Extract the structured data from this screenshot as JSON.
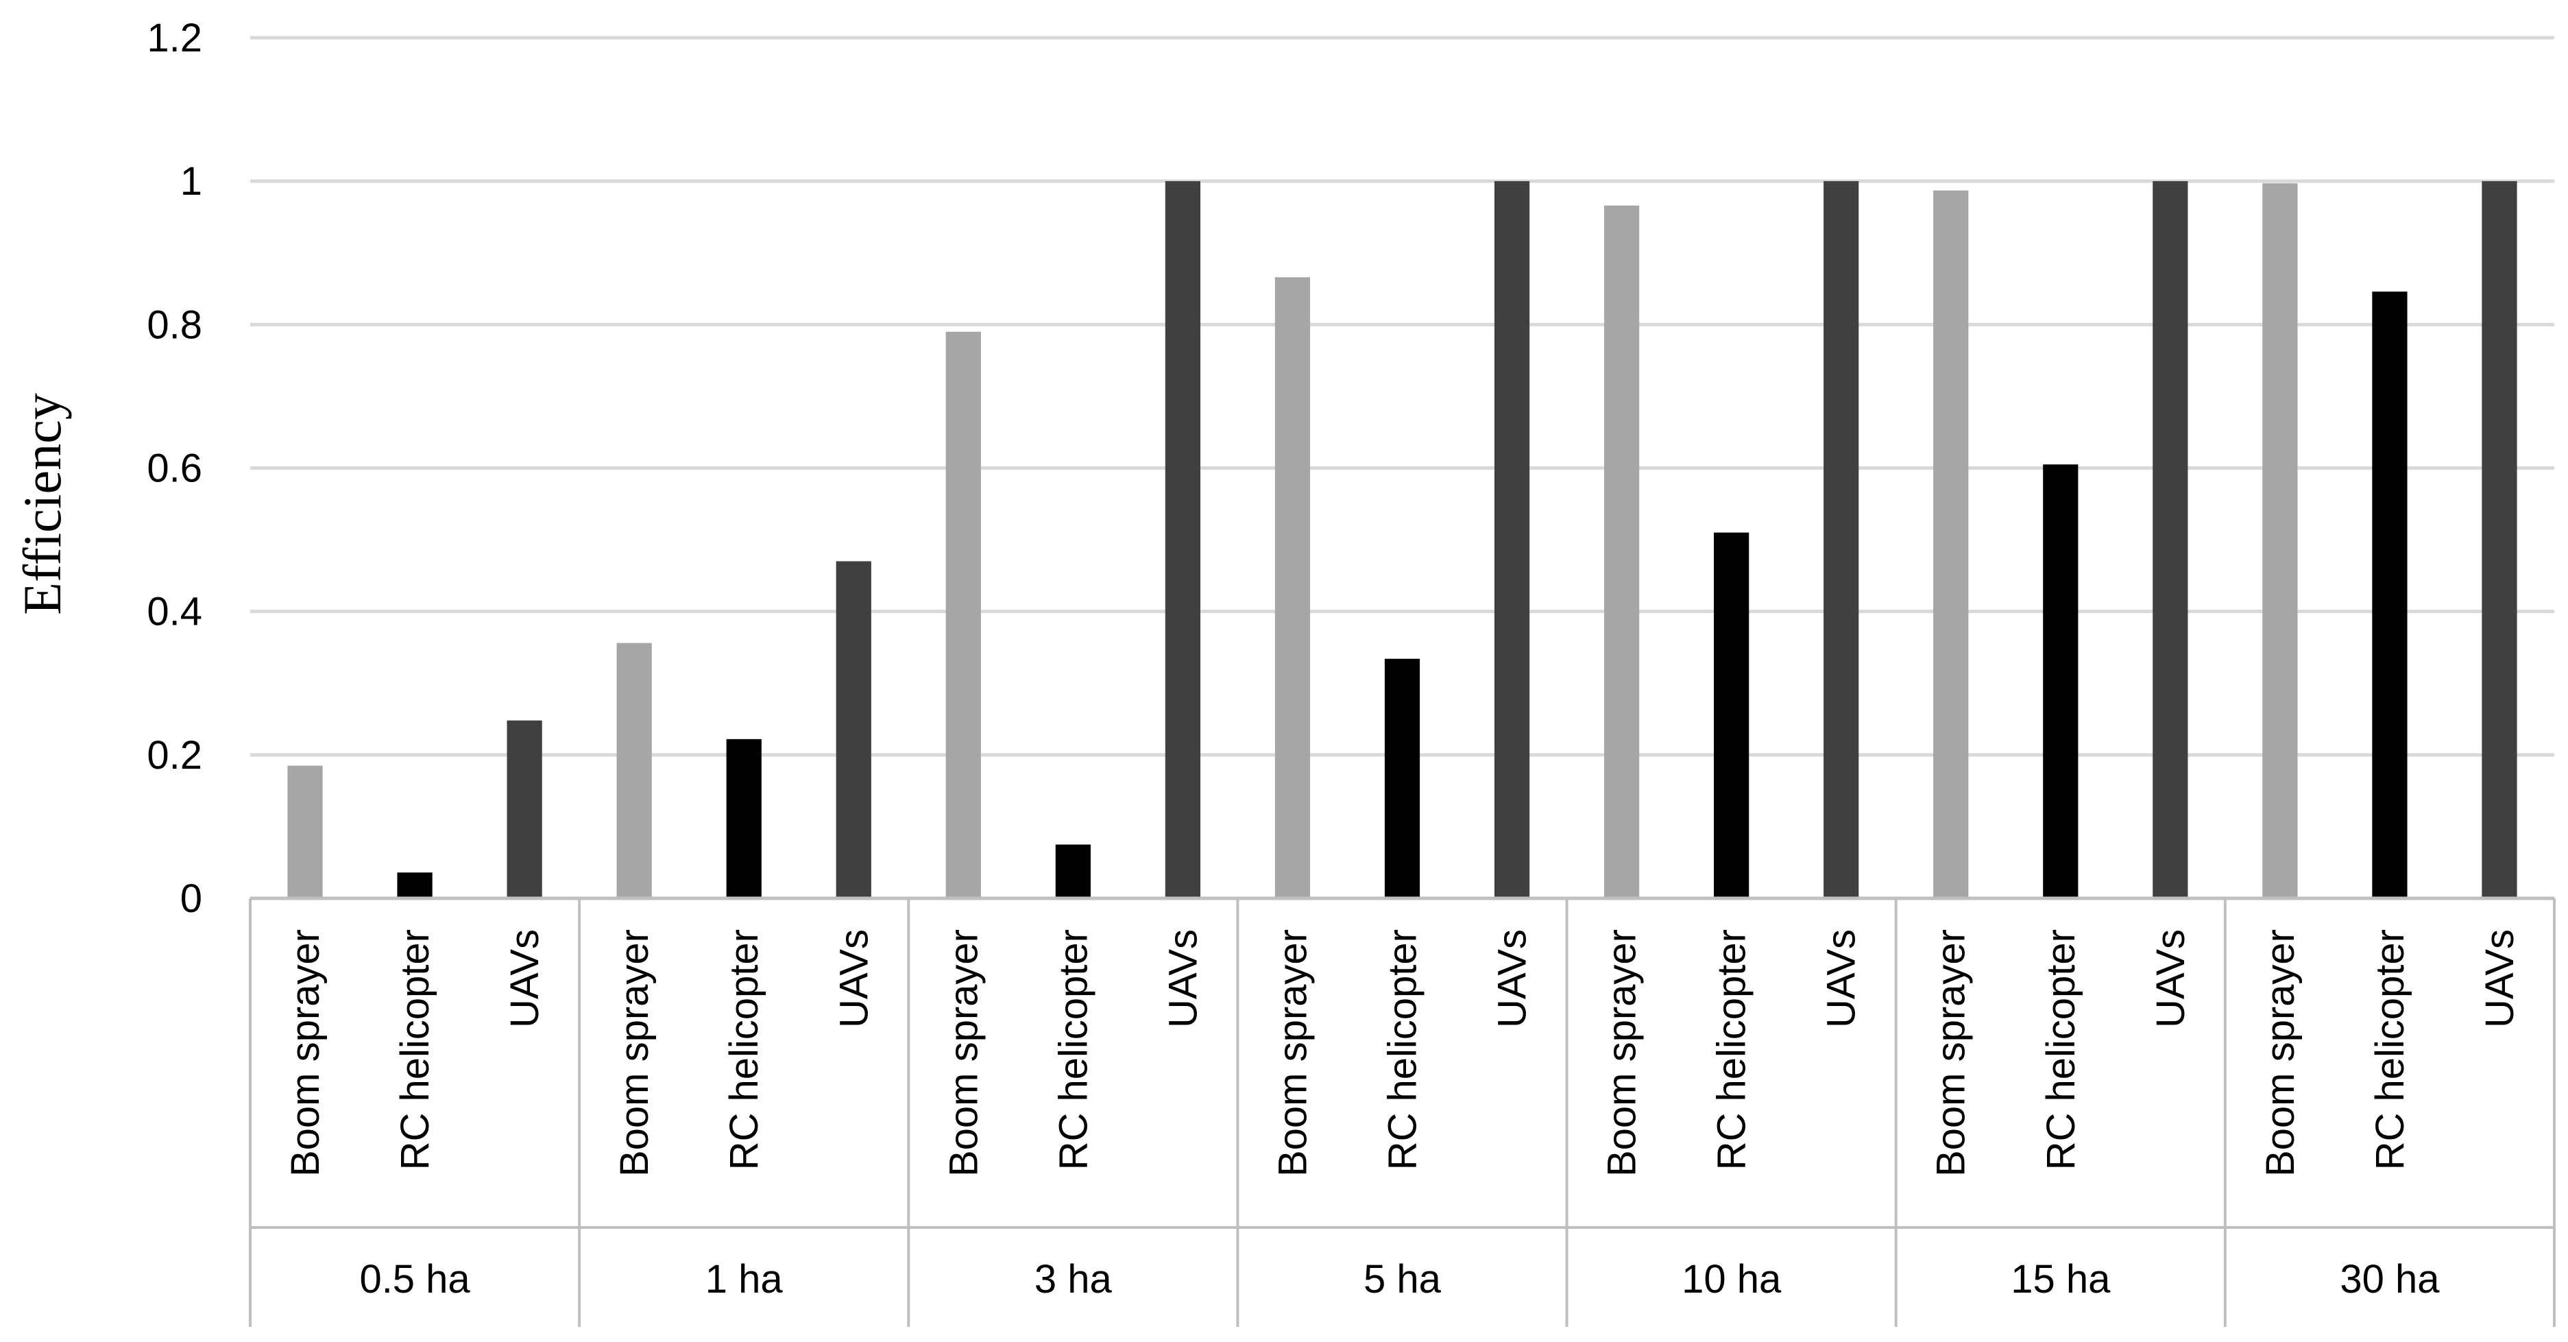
{
  "chart_data": {
    "type": "bar",
    "title": "",
    "xlabel": "",
    "ylabel": "Efficiency",
    "ylim": [
      0,
      1.2
    ],
    "yticks": [
      "0",
      "0.2",
      "0.4",
      "0.6",
      "0.8",
      "1",
      "1.2"
    ],
    "grid": true,
    "groups": [
      "0.5 ha",
      "1 ha",
      "3 ha",
      "5 ha",
      "10 ha",
      "15 ha",
      "30 ha"
    ],
    "categories": [
      "Boom sprayer",
      "RC helicopter",
      "UAVs"
    ],
    "series_colors": [
      "#a6a6a6",
      "#000000",
      "#404040"
    ],
    "values": [
      [
        0.185,
        0.036,
        0.248
      ],
      [
        0.356,
        0.222,
        0.47
      ],
      [
        0.79,
        0.075,
        1.0
      ],
      [
        0.866,
        0.334,
        1.0
      ],
      [
        0.966,
        0.51,
        1.0
      ],
      [
        0.987,
        0.605,
        1.0
      ],
      [
        0.997,
        0.846,
        1.0
      ]
    ]
  }
}
